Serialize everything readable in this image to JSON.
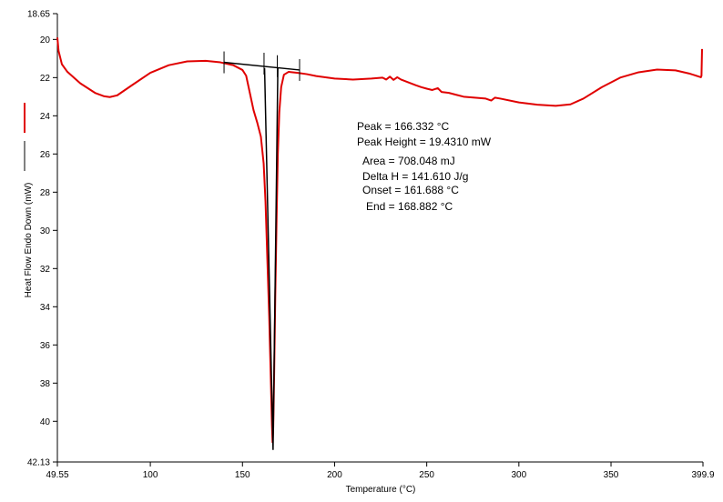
{
  "chart_data": {
    "type": "line",
    "xlabel": "Temperature (°C)",
    "ylabel": "Heat Flow Endo Down (mW)",
    "xlim": [
      49.55,
      399.9
    ],
    "ylim": [
      18.65,
      42.13
    ],
    "y_inverted": true,
    "grid": false,
    "x_ticks": [
      {
        "value": 49.55,
        "label": "49.55"
      },
      {
        "value": 100,
        "label": "100"
      },
      {
        "value": 150,
        "label": "150"
      },
      {
        "value": 200,
        "label": "200"
      },
      {
        "value": 250,
        "label": "250"
      },
      {
        "value": 300,
        "label": "300"
      },
      {
        "value": 350,
        "label": "350"
      },
      {
        "value": 399.9,
        "label": "399.9"
      }
    ],
    "y_ticks": [
      {
        "value": 18.65,
        "label": "18.65"
      },
      {
        "value": 20,
        "label": "20"
      },
      {
        "value": 22,
        "label": "22"
      },
      {
        "value": 24,
        "label": "24"
      },
      {
        "value": 26,
        "label": "26"
      },
      {
        "value": 28,
        "label": "28"
      },
      {
        "value": 30,
        "label": "30"
      },
      {
        "value": 32,
        "label": "32"
      },
      {
        "value": 34,
        "label": "34"
      },
      {
        "value": 36,
        "label": "36"
      },
      {
        "value": 38,
        "label": "38"
      },
      {
        "value": 40,
        "label": "40"
      },
      {
        "value": 42.13,
        "label": "42.13"
      }
    ],
    "series": [
      {
        "color": "#e00000",
        "role": "heat-flow",
        "points": [
          [
            49.55,
            19.9
          ],
          [
            50.2,
            20.6
          ],
          [
            52,
            21.3
          ],
          [
            55,
            21.7
          ],
          [
            62,
            22.3
          ],
          [
            70,
            22.8
          ],
          [
            75,
            22.98
          ],
          [
            78,
            23.02
          ],
          [
            82,
            22.93
          ],
          [
            90,
            22.4
          ],
          [
            100,
            21.75
          ],
          [
            110,
            21.35
          ],
          [
            120,
            21.15
          ],
          [
            130,
            21.12
          ],
          [
            138,
            21.2
          ],
          [
            145,
            21.35
          ],
          [
            150,
            21.6
          ],
          [
            152,
            21.9
          ],
          [
            154,
            22.8
          ],
          [
            156,
            23.7
          ],
          [
            158,
            24.35
          ],
          [
            160,
            25.1
          ],
          [
            161.5,
            26.5
          ],
          [
            162.5,
            28.5
          ],
          [
            163.5,
            31.5
          ],
          [
            164.5,
            34.5
          ],
          [
            165.3,
            37.5
          ],
          [
            166,
            40.2
          ],
          [
            166.33,
            41.1
          ],
          [
            166.7,
            40.3
          ],
          [
            167.2,
            37.5
          ],
          [
            167.8,
            33.5
          ],
          [
            168.5,
            29.5
          ],
          [
            169.2,
            26.0
          ],
          [
            170,
            23.8
          ],
          [
            171,
            22.5
          ],
          [
            172.5,
            21.85
          ],
          [
            175,
            21.7
          ],
          [
            180,
            21.75
          ],
          [
            185,
            21.82
          ],
          [
            190,
            21.92
          ],
          [
            200,
            22.05
          ],
          [
            210,
            22.1
          ],
          [
            220,
            22.05
          ],
          [
            226,
            22.0
          ],
          [
            228,
            22.1
          ],
          [
            230,
            21.95
          ],
          [
            232,
            22.12
          ],
          [
            234,
            21.98
          ],
          [
            236,
            22.1
          ],
          [
            240,
            22.25
          ],
          [
            244,
            22.4
          ],
          [
            247,
            22.5
          ],
          [
            250,
            22.58
          ],
          [
            253,
            22.65
          ],
          [
            256,
            22.55
          ],
          [
            258,
            22.75
          ],
          [
            262,
            22.8
          ],
          [
            266,
            22.9
          ],
          [
            270,
            23.0
          ],
          [
            276,
            23.05
          ],
          [
            282,
            23.1
          ],
          [
            285,
            23.2
          ],
          [
            287,
            23.05
          ],
          [
            290,
            23.1
          ],
          [
            300,
            23.3
          ],
          [
            310,
            23.42
          ],
          [
            320,
            23.48
          ],
          [
            328,
            23.4
          ],
          [
            335,
            23.1
          ],
          [
            345,
            22.5
          ],
          [
            355,
            22.0
          ],
          [
            365,
            21.72
          ],
          [
            375,
            21.58
          ],
          [
            385,
            21.62
          ],
          [
            393,
            21.8
          ],
          [
            398.8,
            21.98
          ],
          [
            399.1,
            21.9
          ],
          [
            399.4,
            20.5
          ]
        ]
      },
      {
        "color": "#000000",
        "role": "baseline-and-integration",
        "segments": [
          [
            [
              140,
              21.2
            ],
            [
              181,
              21.6
            ]
          ],
          [
            [
              162,
              21.5
            ],
            [
              166.6,
              41.5
            ],
            [
              169.2,
              21.5
            ]
          ]
        ],
        "markers": [
          {
            "x": 140,
            "y": 21.2
          },
          {
            "x": 161.7,
            "y": 21.27
          },
          {
            "x": 168.9,
            "y": 21.4
          },
          {
            "x": 181,
            "y": 21.6
          }
        ]
      }
    ],
    "legend": [
      {
        "color": "#e00000",
        "style": "line"
      },
      {
        "color": "#000000",
        "style": "line"
      }
    ],
    "annotations": [
      "Peak = 166.332 °C",
      "Peak Height = 19.4310 mW",
      "Area = 708.048 mJ",
      "Delta H = 141.610 J/g",
      "Onset = 161.688 °C",
      "End = 168.882 °C"
    ]
  }
}
